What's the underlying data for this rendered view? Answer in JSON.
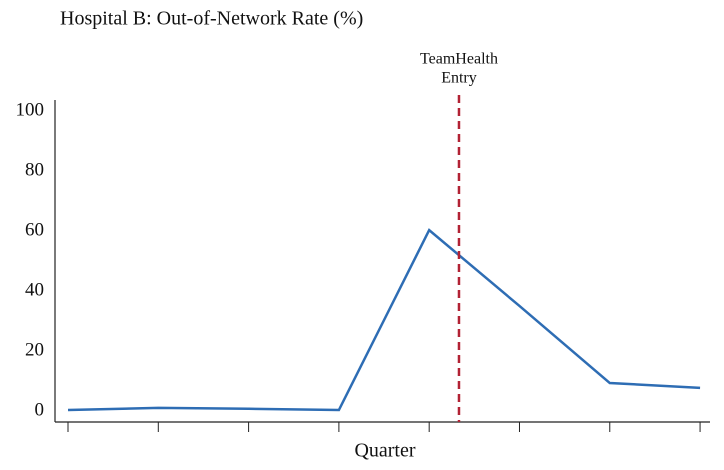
{
  "chart_data": {
    "type": "line",
    "title": "Hospital B: Out-of-Network Rate (%)",
    "x_label": "Quarter",
    "categories": [
      null,
      null,
      null,
      null,
      null,
      null,
      null,
      null
    ],
    "series": [
      {
        "color": "#2e6db4",
        "values": [
          0.3,
          1,
          0.7,
          0.3,
          60.3,
          35,
          9.3,
          7.7
        ]
      }
    ],
    "ylim": [
      -3.7,
      103.7
    ],
    "yticks": [
      0,
      20,
      40,
      60,
      80,
      100
    ],
    "xlim": [
      -0.144,
      7.11
    ],
    "grid": false,
    "annotation": {
      "text": [
        "TeamHealth",
        "Entry"
      ],
      "x": 4.33,
      "color": "#b22234"
    }
  }
}
